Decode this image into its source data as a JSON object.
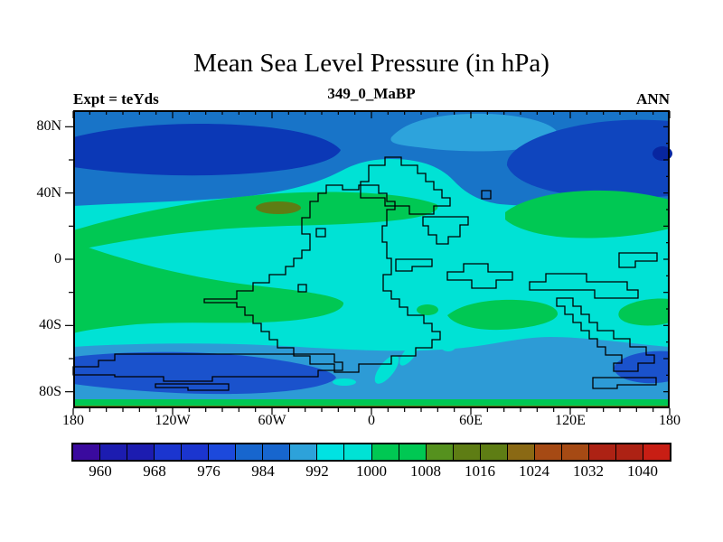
{
  "header": {
    "title": "Mean Sea Level Pressure (in hPa)",
    "subtitle": "349_0_MaBP",
    "experiment_label": "Expt = teYds",
    "season_label": "ANN"
  },
  "colors": {
    "background": "#FFFFFF",
    "frame": "#000000",
    "coastline": "#000000",
    "cyan": "#00E2D5",
    "green": "#00C853",
    "olive": "#5E7D14",
    "steel_blue": "#1874C8",
    "navy": "#0B38B6",
    "navy_dark": "#0826A0",
    "mid_blue": "#0F45BE",
    "sky_blue": "#2DA3DC",
    "sky_band": "#2D9BD6",
    "royal_blue": "#1A52CC"
  },
  "chart_data": {
    "type": "heatmap",
    "subtype": "filled-contour-global-map",
    "title": "Mean Sea Level Pressure (in hPa)",
    "subtitle": "349_0_MaBP",
    "experiment": "Expt = teYds",
    "season": "ANN",
    "projection": "cylindrical latitude-longitude",
    "x_axis": {
      "label": "longitude",
      "tick_labels": [
        "180",
        "120W",
        "60W",
        "0",
        "60E",
        "120E",
        "180"
      ],
      "range_deg": [
        -180,
        180
      ],
      "minor_tick_interval_deg": 10,
      "major_tick_interval_deg": 60
    },
    "y_axis": {
      "label": "latitude",
      "tick_labels": [
        "80N",
        "40N",
        "0",
        "40S",
        "80S"
      ],
      "range_deg": [
        -90,
        90
      ],
      "minor_tick_interval_deg": 20,
      "major_tick_interval_deg": 40
    },
    "colorbar": {
      "units": "hPa",
      "level_min": 956,
      "level_max": 1044,
      "level_step": 4,
      "labels": [
        960,
        968,
        976,
        984,
        992,
        1000,
        1008,
        1016,
        1024,
        1032,
        1040
      ],
      "colors": [
        "#3A0A9E",
        "#1C1CB0",
        "#1C1CB0",
        "#1B35CF",
        "#1B35CF",
        "#1C49DC",
        "#1766CE",
        "#1766CE",
        "#2DA2DA",
        "#00E2E2",
        "#00E2D5",
        "#00C853",
        "#00C853",
        "#55911E",
        "#5E7D14",
        "#5E7D14",
        "#8A6914",
        "#A64A14",
        "#A64A14",
        "#AD2214",
        "#AD2214",
        "#C81E14"
      ]
    },
    "legend_position": "bottom",
    "grid": false,
    "features": [
      {
        "name": "north-polar-low-band",
        "approx_lat": "50N-90N",
        "pressure_hPa": "976-992"
      },
      {
        "name": "northern-low-core-west",
        "approx_location": "60N-75N, 180W-60W",
        "pressure_hPa": "964-972"
      },
      {
        "name": "northern-low-core-east",
        "approx_location": "55N-70N, 30E-180E",
        "pressure_hPa": "968-976"
      },
      {
        "name": "nh-subtropical-high-band",
        "approx_lat": "15N-40N",
        "pressure_hPa": "1000-1008"
      },
      {
        "name": "nh-high-core",
        "approx_location": "30N, 55W",
        "pressure_hPa": "1016-1020"
      },
      {
        "name": "equatorial-band",
        "approx_lat": "20S-20N",
        "pressure_hPa": "992-1000"
      },
      {
        "name": "sh-subtropical-high-band",
        "approx_lat": "30S-45S",
        "pressure_hPa": "1000-1008"
      },
      {
        "name": "circumpolar-trough",
        "approx_lat": "55S-80S",
        "pressure_hPa": "984-992"
      },
      {
        "name": "sh-low-core-west",
        "approx_location": "60S-75S, 180W-90W",
        "pressure_hPa": "972-980"
      },
      {
        "name": "sh-low-core-east",
        "approx_location": "60S-70S, 150E-180E",
        "pressure_hPa": "972-980"
      },
      {
        "name": "south-polar-edge-high-strip",
        "approx_lat": "85S-90S",
        "pressure_hPa": "1000-1016"
      }
    ]
  }
}
